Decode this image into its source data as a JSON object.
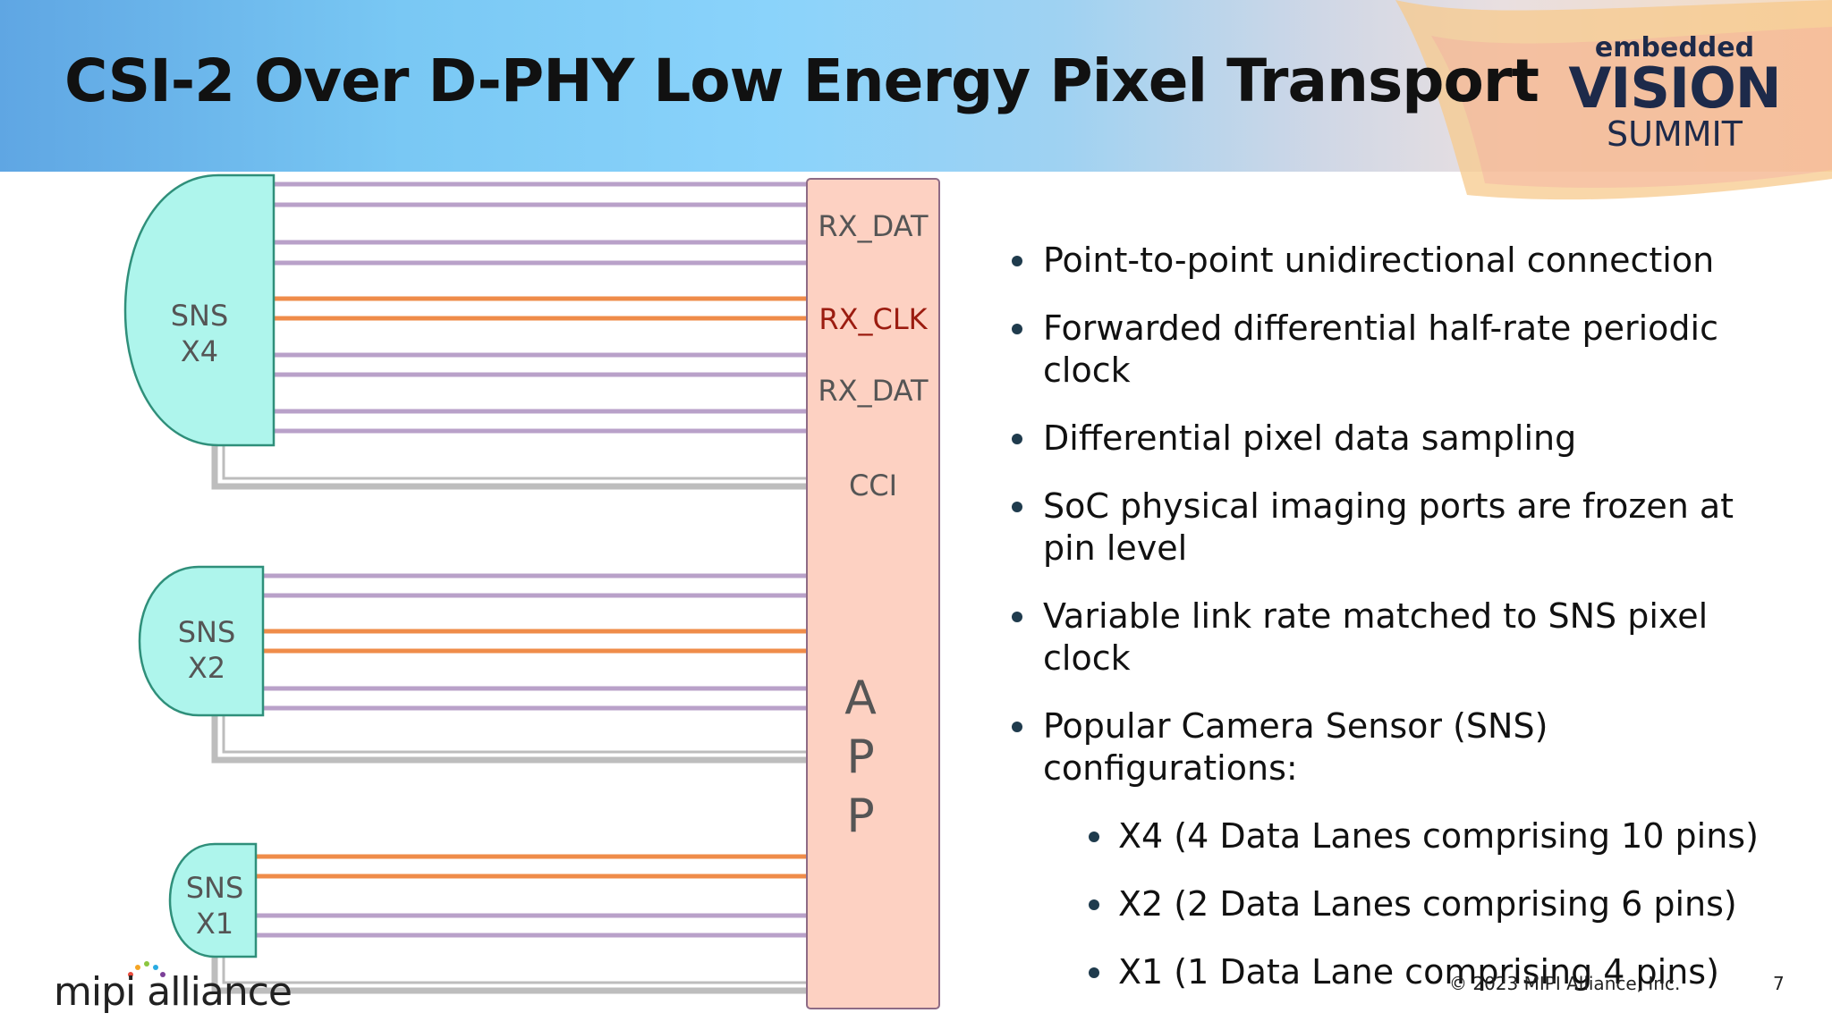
{
  "slide": {
    "title": "CSI-2 Over D-PHY Low Energy Pixel Transport",
    "page_number": "7",
    "copyright": "© 2023 MIPI Alliance, Inc."
  },
  "logos": {
    "event": {
      "top": "embedded",
      "mid": "VISION",
      "bottom": "SUMMIT"
    },
    "company": "mipi alliance"
  },
  "colors": {
    "data_lane": "#b9a1c9",
    "clock_lane": "#ef8c4a",
    "cci_line": "#bdbdbd",
    "sensor_fill": "#aef5ec",
    "sensor_stroke": "#2f8f7a",
    "app_fill": "#fdd1c2",
    "app_stroke": "#8e6b86",
    "clk_label": "#9b1c10"
  },
  "diagram": {
    "app_block": {
      "labels": {
        "data_top": "RX_DAT",
        "clock": "RX_CLK",
        "data_bottom": "RX_DAT",
        "cci": "CCI"
      },
      "vertical_text": [
        "A",
        "P",
        "P"
      ]
    },
    "sensors": [
      {
        "line1": "SNS",
        "line2": "X4"
      },
      {
        "line1": "SNS",
        "line2": "X2"
      },
      {
        "line1": "SNS",
        "line2": "X1"
      }
    ]
  },
  "bullets": [
    {
      "text": "Point-to-point unidirectional connection",
      "level": 1
    },
    {
      "text": "Forwarded differential half-rate periodic clock",
      "level": 1
    },
    {
      "text": "Differential pixel data sampling",
      "level": 1
    },
    {
      "text": "SoC physical imaging ports are frozen at pin level",
      "level": 1
    },
    {
      "text": "Variable link rate matched to SNS pixel clock",
      "level": 1
    },
    {
      "text": "Popular Camera Sensor (SNS) configurations:",
      "level": 1
    },
    {
      "text": "X4 (4 Data Lanes comprising 10 pins)",
      "level": 2
    },
    {
      "text": "X2 (2 Data Lanes comprising 6 pins)",
      "level": 2
    },
    {
      "text": "X1 (1 Data Lane comprising 4 pins)",
      "level": 2
    }
  ]
}
